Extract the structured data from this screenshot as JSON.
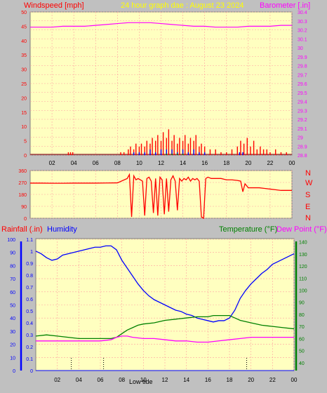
{
  "header": {
    "windspeed_label": "Windspeed [mph]",
    "subtitle": "24 hour graph dae : August 23 2024",
    "barometer_label": "Barometer [.in]"
  },
  "panel3_header": {
    "rainfall_label": "Rainfall (.in)",
    "humidity_label": "Humidity",
    "temperature_label": "Temperature (°F)",
    "dewpoint_label": "Dew Point (°F)"
  },
  "compass_labels": [
    "N",
    "W",
    "S",
    "E",
    "N"
  ],
  "footer_label": "Low tide",
  "colors": {
    "background": "#c0c0c0",
    "plot_bg": "#ffffc0",
    "grid": "#ffa0a0",
    "wind_gust": "#ff0000",
    "wind_avg": "#0000ff",
    "wind_lull": "#008000",
    "barometer": "#ff00ff",
    "direction": "#ff0000",
    "humidity": "#0000ff",
    "temperature": "#008000",
    "dewpoint": "#ff00ff",
    "rainfall": "#0000ff",
    "header_red": "#ff0000",
    "header_yellow": "#ffff00"
  },
  "chart_data": [
    {
      "type": "line",
      "name": "wind-and-barometer",
      "x_ticks": [
        "02",
        "04",
        "06",
        "08",
        "10",
        "12",
        "14",
        "16",
        "18",
        "20",
        "22",
        "00"
      ],
      "x_range_hours": [
        0,
        24
      ],
      "ylim_left": [
        0,
        50
      ],
      "yticks_left": [
        0,
        5,
        10,
        15,
        20,
        25,
        30,
        35,
        40,
        45,
        50
      ],
      "ylim_right": [
        28.8,
        30.4
      ],
      "yticks_right": [
        "28.8",
        "28.9",
        "29",
        "29.1",
        "29.2",
        "29.3",
        "29.4",
        "29.5",
        "29.6",
        "29.7",
        "29.8",
        "29.9",
        "30",
        "30.1",
        "30.2",
        "30.3",
        "30.4"
      ],
      "grid": true,
      "barometer": {
        "x": [
          0,
          2,
          3,
          4,
          5,
          6,
          7,
          8,
          9,
          10,
          11,
          12,
          13,
          14,
          15,
          16,
          17,
          18,
          19,
          20,
          21,
          22,
          23,
          24
        ],
        "y": [
          30.23,
          30.23,
          30.24,
          30.24,
          30.24,
          30.25,
          30.26,
          30.27,
          30.28,
          30.28,
          30.28,
          30.27,
          30.26,
          30.25,
          30.24,
          30.24,
          30.23,
          30.23,
          30.23,
          30.24,
          30.24,
          30.24,
          30.25,
          30.25
        ]
      },
      "wind_gust": {
        "x": [
          3.5,
          3.7,
          3.9,
          8.3,
          8.6,
          9.0,
          9.2,
          9.5,
          9.7,
          10.0,
          10.2,
          10.5,
          10.7,
          11.0,
          11.2,
          11.5,
          11.7,
          12.0,
          12.2,
          12.5,
          12.7,
          13.0,
          13.2,
          13.5,
          13.7,
          14.0,
          14.2,
          14.5,
          14.7,
          15.0,
          15.2,
          15.5,
          15.7,
          16.0,
          16.5,
          17.0,
          17.5,
          18.0,
          18.5,
          19.0,
          19.3,
          19.6,
          19.9,
          20.2,
          20.5,
          20.8,
          21.1,
          21.4,
          21.7,
          22.0,
          22.5,
          23.0,
          23.5
        ],
        "y": [
          1,
          1,
          1,
          1,
          1,
          2,
          3,
          2,
          4,
          3,
          4,
          3,
          5,
          4,
          6,
          5,
          7,
          5,
          8,
          6,
          9,
          5,
          7,
          4,
          6,
          5,
          7,
          4,
          6,
          5,
          7,
          3,
          4,
          3,
          2,
          2,
          1,
          1,
          2,
          3,
          5,
          4,
          6,
          3,
          5,
          2,
          3,
          2,
          2,
          1,
          2,
          1,
          1
        ]
      },
      "wind_avg": {
        "x": [
          9.5,
          10.0,
          10.5,
          11.0,
          11.5,
          12.0,
          12.5,
          13.0,
          13.5,
          14.0,
          14.5,
          15.0,
          15.5,
          16.0,
          19.2,
          19.5
        ],
        "y": [
          1,
          1,
          1,
          2,
          1,
          2,
          2,
          2,
          1,
          2,
          1,
          2,
          1,
          1,
          1,
          1
        ]
      },
      "wind_lull": {
        "x": [
          12.5,
          13.0,
          13.5,
          14.0
        ],
        "y": [
          0.5,
          0.5,
          0.5,
          0.5
        ]
      }
    },
    {
      "type": "line",
      "name": "wind-direction",
      "x_range_hours": [
        0,
        24
      ],
      "ylim": [
        0,
        360
      ],
      "yticks": [
        0,
        90,
        180,
        270,
        360
      ],
      "grid": true,
      "direction": {
        "x": [
          0,
          1,
          2,
          3,
          4,
          5,
          6,
          7,
          8,
          8.9,
          9.1,
          9.3,
          9.5,
          9.7,
          9.9,
          10.1,
          10.3,
          10.5,
          10.7,
          10.9,
          11.1,
          11.3,
          11.5,
          11.7,
          11.9,
          12.1,
          12.3,
          12.5,
          12.7,
          12.9,
          13.1,
          13.3,
          13.5,
          13.7,
          13.9,
          14.1,
          14.3,
          14.5,
          14.7,
          14.9,
          15.1,
          15.3,
          15.5,
          15.7,
          15.9,
          16.1,
          16.3,
          16.6,
          17.0,
          17.5,
          18.0,
          18.5,
          19.0,
          19.3,
          19.5,
          19.7,
          20.0,
          20.5,
          21.0,
          21.5,
          22.0,
          22.5,
          23.0,
          24.0
        ],
        "y": [
          265,
          265,
          264,
          264,
          265,
          265,
          265,
          266,
          267,
          300,
          330,
          10,
          320,
          290,
          300,
          290,
          280,
          20,
          300,
          310,
          280,
          40,
          300,
          20,
          310,
          290,
          30,
          300,
          50,
          290,
          320,
          280,
          60,
          300,
          280,
          300,
          290,
          310,
          280,
          300,
          290,
          300,
          280,
          10,
          0,
          300,
          310,
          300,
          300,
          300,
          290,
          290,
          285,
          280,
          200,
          260,
          230,
          230,
          230,
          225,
          220,
          215,
          210,
          210
        ]
      }
    },
    {
      "type": "line",
      "name": "rain-humidity-temperature",
      "x_ticks": [
        "02",
        "04",
        "06",
        "08",
        "10",
        "12",
        "14",
        "16",
        "18",
        "20",
        "22",
        "00"
      ],
      "x_range_hours": [
        0,
        24
      ],
      "ylim_rainfall": [
        0,
        1.1
      ],
      "yticks_rainfall": [
        "0",
        "0.1",
        "0.2",
        "0.3",
        "0.4",
        "0.5",
        "0.6",
        "0.7",
        "0.8",
        "0.9",
        "1",
        "1.1"
      ],
      "ylim_humidity": [
        0,
        100
      ],
      "yticks_humidity": [
        0,
        10,
        20,
        30,
        40,
        50,
        60,
        70,
        80,
        90,
        100
      ],
      "ylim_temperature": [
        30,
        145
      ],
      "yticks_temperature": [
        40,
        50,
        60,
        70,
        80,
        90,
        100,
        110,
        120,
        130,
        140
      ],
      "grid": true,
      "humidity": {
        "x": [
          0,
          0.5,
          1,
          1.5,
          2,
          2.5,
          3,
          3.5,
          4,
          4.5,
          5,
          5.5,
          6,
          6.5,
          7,
          7.5,
          8,
          8.5,
          9,
          9.5,
          10,
          10.5,
          11,
          11.5,
          12,
          12.5,
          13,
          13.5,
          14,
          14.5,
          15,
          15.5,
          16,
          16.5,
          17,
          17.5,
          18,
          18.5,
          19,
          19.5,
          20,
          20.5,
          21,
          21.5,
          22,
          22.5,
          23,
          23.5,
          24
        ],
        "y": [
          91,
          89,
          86,
          84,
          85,
          88,
          89,
          90,
          91,
          92,
          93,
          94,
          94,
          95,
          95,
          92,
          84,
          78,
          72,
          66,
          61,
          57,
          54,
          52,
          50,
          48,
          46,
          45,
          43,
          42,
          40,
          39,
          38,
          37,
          38,
          38,
          40,
          46,
          55,
          61,
          66,
          70,
          74,
          77,
          81,
          83,
          85,
          87,
          89
        ]
      },
      "temperature": {
        "x": [
          0,
          1,
          2,
          3,
          4,
          5,
          6,
          7,
          7.5,
          8,
          8.5,
          9,
          9.5,
          10,
          11,
          12,
          13,
          14,
          15,
          16,
          16.5,
          17,
          17.5,
          18,
          18.5,
          19,
          20,
          21,
          22,
          23,
          24
        ],
        "y": [
          62,
          63,
          62,
          61,
          60,
          60,
          60,
          60,
          61,
          64,
          67,
          69,
          71,
          72,
          73,
          75,
          76,
          77,
          78,
          78,
          79,
          79,
          79,
          79,
          77,
          75,
          73,
          71,
          70,
          69,
          68
        ]
      },
      "dewpoint": {
        "x": [
          0,
          1,
          2,
          3,
          4,
          5,
          6,
          7,
          7.5,
          8,
          8.5,
          9,
          10,
          11,
          12,
          13,
          14,
          15,
          16,
          17,
          18,
          19,
          20,
          21,
          22,
          23,
          24
        ],
        "y": [
          58,
          58,
          58,
          58,
          58,
          58,
          58,
          59,
          61,
          62,
          62,
          61,
          60,
          60,
          59,
          58,
          58,
          57,
          57,
          58,
          59,
          60,
          61,
          61,
          61,
          61,
          61
        ]
      },
      "rainfall": {
        "x": [
          0,
          24
        ],
        "y": [
          0,
          0
        ]
      },
      "markers_x": [
        3.3,
        6.3,
        19.6
      ]
    }
  ]
}
